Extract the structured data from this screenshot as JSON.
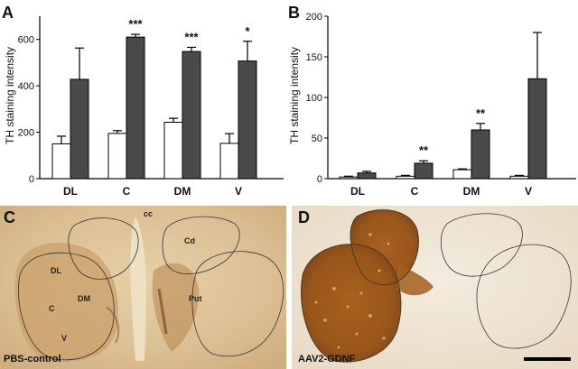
{
  "chart_data": [
    {
      "type": "bar",
      "panel_label": "A",
      "ylabel": "TH staining intensity",
      "ylim": [
        0,
        700
      ],
      "yticks": [
        0,
        200,
        400,
        600
      ],
      "categories": [
        "DL",
        "C",
        "DM",
        "V"
      ],
      "series": [
        {
          "values": [
            150,
            195,
            243,
            152
          ],
          "errors": [
            33,
            12,
            17,
            42
          ],
          "color": "#ffffff"
        },
        {
          "values": [
            428,
            610,
            548,
            507
          ],
          "errors": [
            135,
            12,
            18,
            85
          ],
          "color": "#4a4a4a"
        }
      ],
      "significance": [
        "",
        "***",
        "***",
        "*"
      ],
      "grid": false
    },
    {
      "type": "bar",
      "panel_label": "B",
      "ylabel": "TH staining intensity",
      "ylim": [
        0,
        200
      ],
      "yticks": [
        0,
        50,
        100,
        150,
        200
      ],
      "categories": [
        "DL",
        "C",
        "DM",
        "V"
      ],
      "series": [
        {
          "values": [
            2,
            3,
            11,
            3
          ],
          "errors": [
            1,
            1,
            1,
            1
          ],
          "color": "#ffffff"
        },
        {
          "values": [
            7,
            19,
            60,
            123
          ],
          "errors": [
            2,
            3,
            8,
            57
          ],
          "color": "#4a4a4a"
        }
      ],
      "significance": [
        "",
        "**",
        "**",
        ""
      ],
      "grid": false
    }
  ],
  "micrographs": {
    "left": {
      "panel_label": "C",
      "caption": "PBS-control",
      "annotations": [
        "cc",
        "Cd",
        "Put",
        "DL",
        "DM",
        "C",
        "V"
      ]
    },
    "right": {
      "panel_label": "D",
      "caption": "AAV2-GDNF"
    }
  }
}
